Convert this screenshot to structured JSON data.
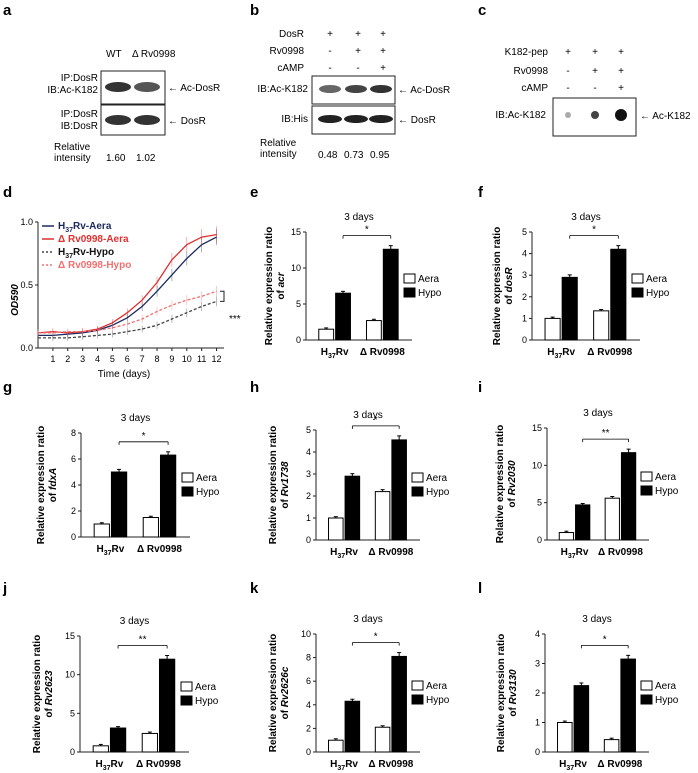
{
  "panel_letters": [
    "a",
    "b",
    "c",
    "d",
    "e",
    "f",
    "g",
    "h",
    "i",
    "j",
    "k",
    "l"
  ],
  "panel_a": {
    "col_labels": [
      "WT",
      "Δ Rv0998"
    ],
    "row_labels": [
      [
        "IP:DosR",
        "IB:Ac-K182"
      ],
      [
        "IP:DosR",
        "IB:DosR"
      ]
    ],
    "band_labels": [
      "Ac-DosR",
      "DosR"
    ],
    "quant_label": [
      "Relative",
      "intensity"
    ],
    "quant_values": [
      "1.60",
      "1.02"
    ]
  },
  "panel_b": {
    "factor_labels": [
      "DosR",
      "Rv0998",
      "cAMP"
    ],
    "signs": [
      [
        "+",
        "+",
        "+"
      ],
      [
        "-",
        "+",
        "+"
      ],
      [
        "-",
        "-",
        "+"
      ]
    ],
    "row_labels": [
      "IB:Ac-K182",
      "IB:His"
    ],
    "band_labels": [
      "Ac-DosR",
      "DosR"
    ],
    "quant_label": [
      "Relative",
      "intensity"
    ],
    "quant_values": [
      "0.48",
      "0.73",
      "0.95"
    ]
  },
  "panel_c": {
    "factor_labels": [
      "K182-pep",
      "Rv0998",
      "cAMP"
    ],
    "signs": [
      [
        "+",
        "+",
        "+"
      ],
      [
        "-",
        "+",
        "+"
      ],
      [
        "-",
        "-",
        "+"
      ]
    ],
    "row_label": "IB:Ac-K182",
    "band_label": "Ac-K182"
  },
  "growth": {
    "ylabel": "OD590",
    "xlabel": "Time (days)",
    "significance": "***",
    "legend": [
      {
        "base": "H",
        "sub": "37",
        "rest": "Rv-Aera",
        "color": "#1a2a5c",
        "dash": false
      },
      {
        "base": "",
        "sub": "",
        "rest": "Δ Rv0998-Aera",
        "color": "#e03030",
        "dash": false
      },
      {
        "base": "H",
        "sub": "37",
        "rest": "Rv-Hypo",
        "color": "#444444",
        "dash": true
      },
      {
        "base": "",
        "sub": "",
        "rest": "Δ Rv0998-Hypo",
        "color": "#f07070",
        "dash": true
      }
    ]
  },
  "chart_data": [
    {
      "type": "line",
      "panel": "d",
      "xlabel": "Time (days)",
      "ylabel": "OD590",
      "xlim": [
        0,
        12.5
      ],
      "ylim": [
        0,
        1.0
      ],
      "xticks": [
        1,
        2,
        3,
        4,
        5,
        6,
        7,
        8,
        9,
        10,
        11,
        12
      ],
      "yticks": [
        "0.0",
        "0.5",
        "1.0"
      ],
      "x": [
        0,
        1,
        2,
        3,
        4,
        5,
        6,
        7,
        8,
        9,
        10,
        11,
        12
      ],
      "series": [
        {
          "name": "H37Rv-Aera",
          "values": [
            0.1,
            0.1,
            0.11,
            0.12,
            0.14,
            0.18,
            0.24,
            0.33,
            0.45,
            0.58,
            0.71,
            0.82,
            0.88
          ]
        },
        {
          "name": "Δ Rv0998-Aera",
          "values": [
            0.12,
            0.13,
            0.12,
            0.13,
            0.15,
            0.2,
            0.28,
            0.38,
            0.52,
            0.7,
            0.82,
            0.88,
            0.9
          ]
        },
        {
          "name": "H37Rv-Hypo",
          "values": [
            0.08,
            0.08,
            0.08,
            0.09,
            0.1,
            0.11,
            0.13,
            0.15,
            0.18,
            0.23,
            0.28,
            0.33,
            0.37
          ]
        },
        {
          "name": "Δ Rv0998-Hypo",
          "values": [
            0.12,
            0.12,
            0.13,
            0.13,
            0.14,
            0.16,
            0.19,
            0.23,
            0.29,
            0.34,
            0.38,
            0.41,
            0.45
          ]
        }
      ]
    },
    {
      "type": "bar",
      "panel": "e",
      "title": "3 days",
      "ylabel": "Relative expression ratio",
      "gene": "acr",
      "ylim": [
        0,
        15
      ],
      "yticks": [
        "0",
        "5",
        "10",
        "15"
      ],
      "categories": [
        "H37Rv",
        "Δ Rv0998"
      ],
      "series": [
        {
          "name": "Aera",
          "values": [
            1.5,
            2.7
          ]
        },
        {
          "name": "Hypo",
          "values": [
            6.5,
            12.6
          ]
        }
      ],
      "significance": "*"
    },
    {
      "type": "bar",
      "panel": "f",
      "title": "3 days",
      "ylabel": "Relative expression ratio",
      "gene": "dosR",
      "ylim": [
        0,
        5
      ],
      "yticks": [
        "0",
        "1",
        "2",
        "3",
        "4",
        "5"
      ],
      "categories": [
        "H37Rv",
        "Δ Rv0998"
      ],
      "series": [
        {
          "name": "Aera",
          "values": [
            1.0,
            1.35
          ]
        },
        {
          "name": "Hypo",
          "values": [
            2.9,
            4.2
          ]
        }
      ],
      "significance": "*"
    },
    {
      "type": "bar",
      "panel": "g",
      "title": "3 days",
      "ylabel": "Relative expression ratio",
      "gene": "fdxA",
      "ylim": [
        0,
        8
      ],
      "yticks": [
        "0",
        "2",
        "4",
        "6",
        "8"
      ],
      "categories": [
        "H37Rv",
        "Δ Rv0998"
      ],
      "series": [
        {
          "name": "Aera",
          "values": [
            1.0,
            1.5
          ]
        },
        {
          "name": "Hypo",
          "values": [
            5.0,
            6.3
          ]
        }
      ],
      "significance": "*"
    },
    {
      "type": "bar",
      "panel": "h",
      "title": "3 days",
      "ylabel": "Relative expression ratio",
      "gene": "Rv1738",
      "ylim": [
        0,
        5
      ],
      "yticks": [
        "0",
        "1",
        "2",
        "3",
        "4",
        "5"
      ],
      "categories": [
        "H37Rv",
        "Δ Rv0998"
      ],
      "series": [
        {
          "name": "Aera",
          "values": [
            1.0,
            2.2
          ]
        },
        {
          "name": "Hypo",
          "values": [
            2.9,
            4.55
          ]
        }
      ],
      "significance": "*"
    },
    {
      "type": "bar",
      "panel": "i",
      "title": "3 days",
      "ylabel": "Relative expression ratio",
      "gene": "Rv2030",
      "ylim": [
        0,
        15
      ],
      "yticks": [
        "0",
        "5",
        "10",
        "15"
      ],
      "categories": [
        "H37Rv",
        "Δ Rv0998"
      ],
      "series": [
        {
          "name": "Aera",
          "values": [
            1.0,
            5.6
          ]
        },
        {
          "name": "Hypo",
          "values": [
            4.7,
            11.7
          ]
        }
      ],
      "significance": "**"
    },
    {
      "type": "bar",
      "panel": "j",
      "title": "3 days",
      "ylabel": "Relative expression ratio",
      "gene": "Rv2623",
      "ylim": [
        0,
        15
      ],
      "yticks": [
        "0",
        "5",
        "10",
        "15"
      ],
      "categories": [
        "H37Rv",
        "Δ Rv0998"
      ],
      "series": [
        {
          "name": "Aera",
          "values": [
            0.8,
            2.4
          ]
        },
        {
          "name": "Hypo",
          "values": [
            3.1,
            12.0
          ]
        }
      ],
      "significance": "**"
    },
    {
      "type": "bar",
      "panel": "k",
      "title": "3 days",
      "ylabel": "Relative expression ratio",
      "gene": "Rv2626c",
      "ylim": [
        0,
        10
      ],
      "yticks": [
        "0",
        "2",
        "4",
        "6",
        "8",
        "10"
      ],
      "categories": [
        "H37Rv",
        "Δ Rv0998"
      ],
      "series": [
        {
          "name": "Aera",
          "values": [
            1.0,
            2.1
          ]
        },
        {
          "name": "Hypo",
          "values": [
            4.3,
            8.1
          ]
        }
      ],
      "significance": "*"
    },
    {
      "type": "bar",
      "panel": "l",
      "title": "3 days",
      "ylabel": "Relative expression ratio",
      "gene": "Rv3130",
      "ylim": [
        0,
        4
      ],
      "yticks": [
        "0",
        "1",
        "2",
        "3",
        "4"
      ],
      "categories": [
        "H37Rv",
        "Δ Rv0998"
      ],
      "series": [
        {
          "name": "Aera",
          "values": [
            1.0,
            0.42
          ]
        },
        {
          "name": "Hypo",
          "values": [
            2.25,
            3.15
          ]
        }
      ],
      "significance": "*"
    }
  ],
  "bar_legend": [
    "Aera",
    "Hypo"
  ],
  "bar_ylabel_prefix": "Relative expression ratio",
  "bar_gene_prefix": "of",
  "strain_labels": [
    {
      "base": "H",
      "sub": "37",
      "rest": "Rv"
    },
    {
      "base": "",
      "sub": "",
      "rest": "Δ Rv0998"
    }
  ]
}
